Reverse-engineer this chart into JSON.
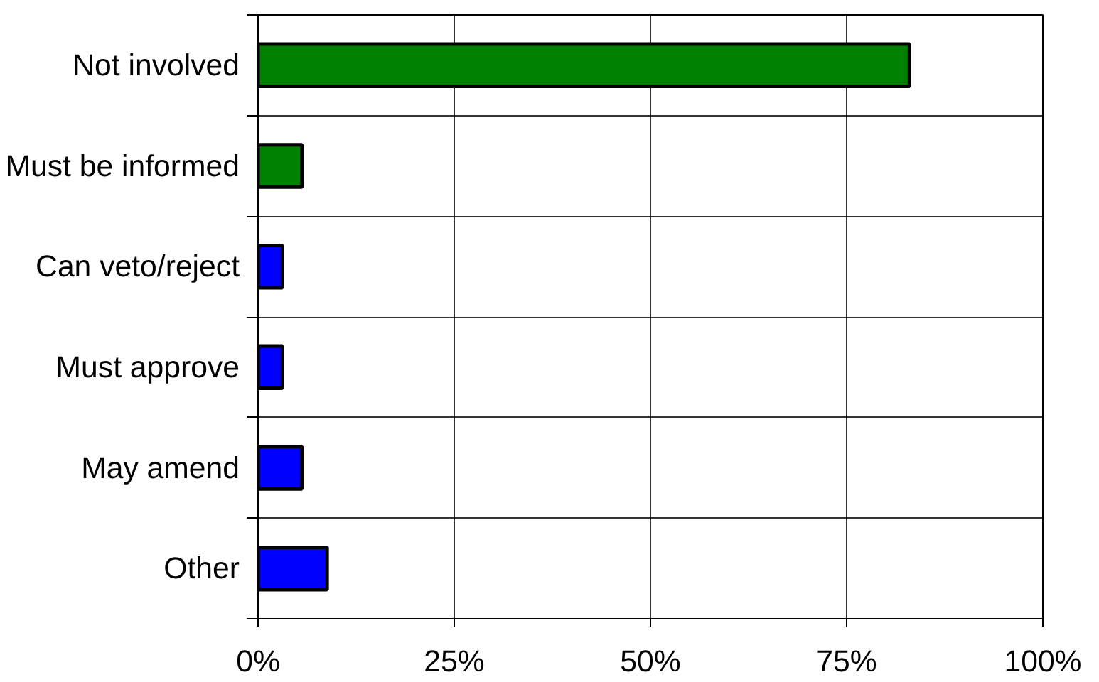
{
  "chart_data": {
    "type": "bar",
    "orientation": "horizontal",
    "categories": [
      "Not involved",
      "Must be informed",
      "Can veto/reject",
      "Must approve",
      "May amend",
      "Other"
    ],
    "values": [
      83,
      5.6,
      3.1,
      3.1,
      5.6,
      8.8
    ],
    "colors": [
      "#008000",
      "#008000",
      "#0000ff",
      "#0000ff",
      "#0000ff",
      "#0000ff"
    ],
    "xlim": [
      0,
      100
    ],
    "xticks": [
      {
        "value": 0,
        "label": "0%"
      },
      {
        "value": 25,
        "label": "25%"
      },
      {
        "value": 50,
        "label": "50%"
      },
      {
        "value": 75,
        "label": "75%"
      },
      {
        "value": 100,
        "label": "100%"
      }
    ],
    "grid": true
  }
}
